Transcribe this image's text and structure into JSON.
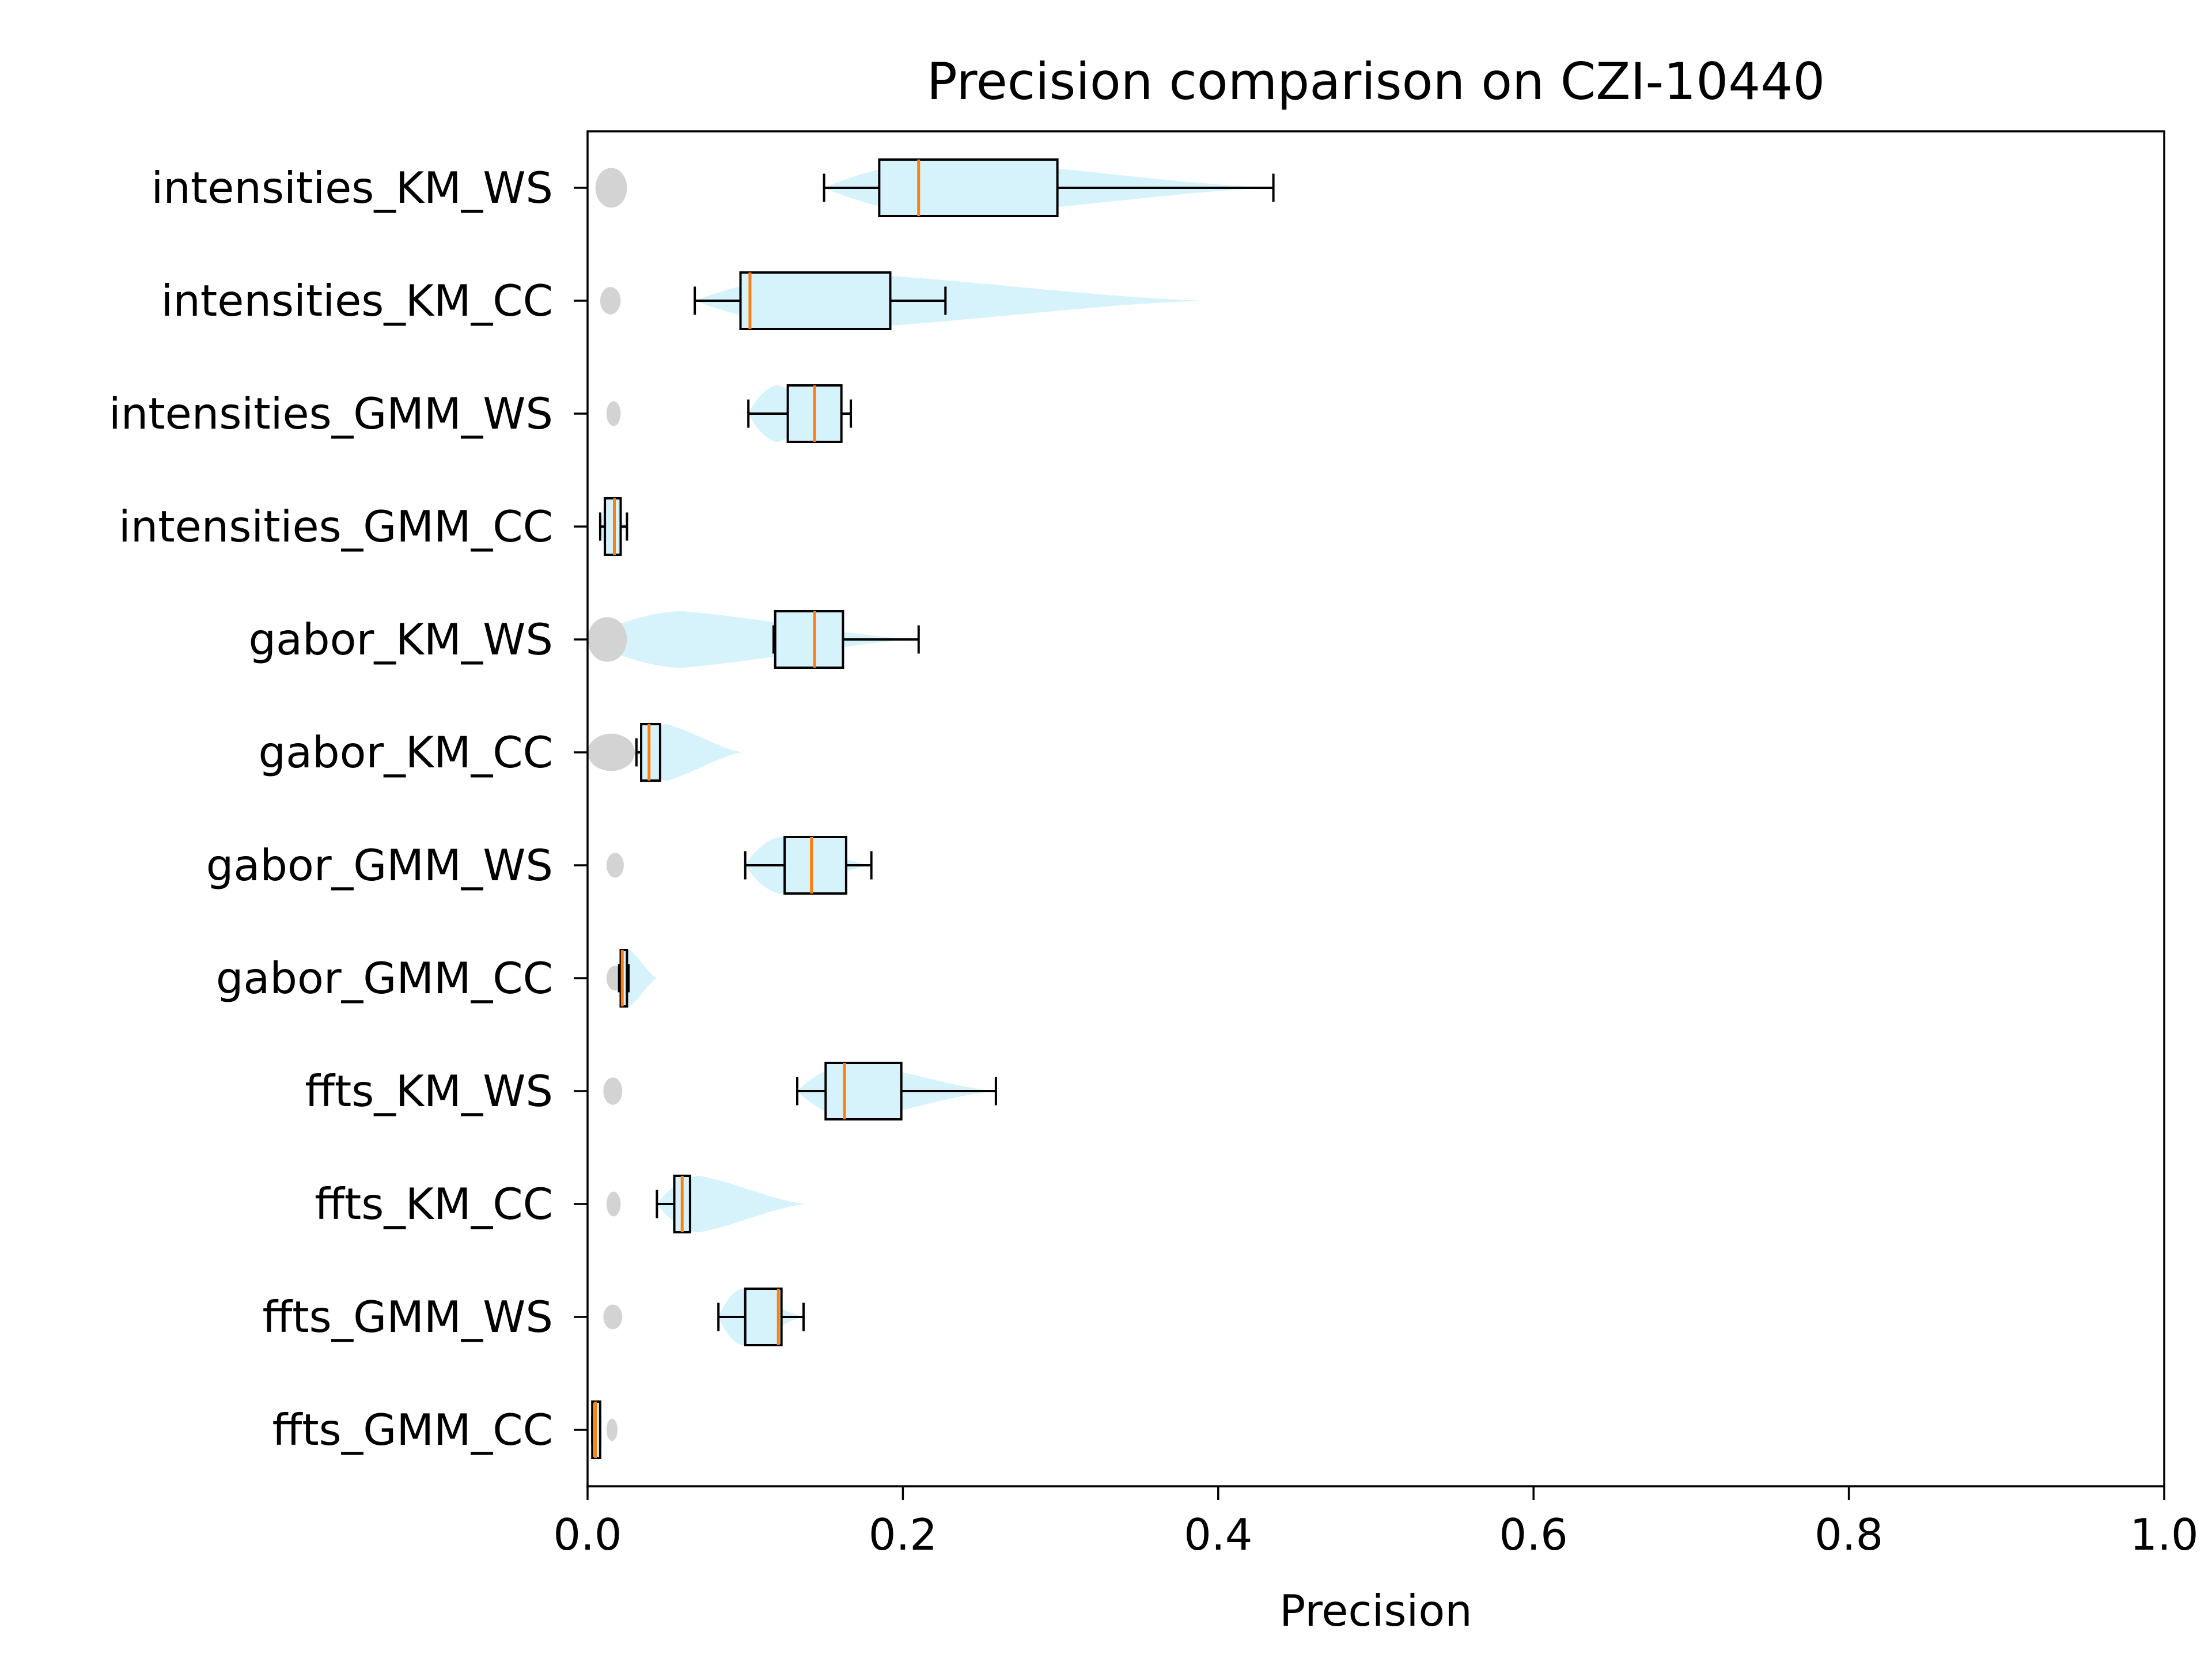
{
  "chart_data": {
    "type": "boxplot",
    "title": "Precision comparison on CZI-10440",
    "xlabel": "Precision",
    "ylabel": "",
    "xlim": [
      0,
      1
    ],
    "x_ticks": [
      "0.0",
      "0.2",
      "0.4",
      "0.6",
      "0.8",
      "1.0"
    ],
    "grid": false,
    "orientation": "horizontal",
    "colors": {
      "box_fill": "#d6f3fc",
      "violin_fill": "#d6f3fc",
      "background_violin": "#d3d3d3",
      "median": "#ff7f0e",
      "box_edge": "#000000"
    },
    "series": [
      {
        "label": "intensities_KM_WS",
        "whisker_low": 0.15,
        "q1": 0.185,
        "median": 0.21,
        "q3": 0.298,
        "whisker_high": 0.435,
        "violin_min": 0.15,
        "violin_max": 0.435
      },
      {
        "label": "intensities_KM_CC",
        "whisker_low": 0.068,
        "q1": 0.097,
        "median": 0.103,
        "q3": 0.192,
        "whisker_high": 0.227,
        "violin_min": 0.068,
        "violin_max": 0.39
      },
      {
        "label": "intensities_GMM_WS",
        "whisker_low": 0.102,
        "q1": 0.127,
        "median": 0.144,
        "q3": 0.161,
        "whisker_high": 0.167,
        "violin_min": 0.102,
        "violin_max": 0.167
      },
      {
        "label": "intensities_GMM_CC",
        "whisker_low": 0.008,
        "q1": 0.011,
        "median": 0.017,
        "q3": 0.021,
        "whisker_high": 0.025,
        "violin_min": 0.008,
        "violin_max": 0.025
      },
      {
        "label": "gabor_KM_WS",
        "whisker_low": 0.118,
        "q1": 0.119,
        "median": 0.144,
        "q3": 0.162,
        "whisker_high": 0.21,
        "violin_min": 0.0,
        "violin_max": 0.21
      },
      {
        "label": "gabor_KM_CC",
        "whisker_low": 0.031,
        "q1": 0.034,
        "median": 0.039,
        "q3": 0.046,
        "whisker_high": 0.046,
        "violin_min": 0.031,
        "violin_max": 0.098
      },
      {
        "label": "gabor_GMM_WS",
        "whisker_low": 0.1,
        "q1": 0.125,
        "median": 0.142,
        "q3": 0.164,
        "whisker_high": 0.18,
        "violin_min": 0.1,
        "violin_max": 0.18
      },
      {
        "label": "gabor_GMM_CC",
        "whisker_low": 0.02,
        "q1": 0.021,
        "median": 0.022,
        "q3": 0.025,
        "whisker_high": 0.026,
        "violin_min": 0.02,
        "violin_max": 0.044
      },
      {
        "label": "ffts_KM_WS",
        "whisker_low": 0.133,
        "q1": 0.151,
        "median": 0.163,
        "q3": 0.199,
        "whisker_high": 0.259,
        "violin_min": 0.133,
        "violin_max": 0.259
      },
      {
        "label": "ffts_KM_CC",
        "whisker_low": 0.044,
        "q1": 0.055,
        "median": 0.06,
        "q3": 0.065,
        "whisker_high": 0.065,
        "violin_min": 0.044,
        "violin_max": 0.138
      },
      {
        "label": "ffts_GMM_WS",
        "whisker_low": 0.083,
        "q1": 0.1,
        "median": 0.121,
        "q3": 0.123,
        "whisker_high": 0.137,
        "violin_min": 0.083,
        "violin_max": 0.137
      },
      {
        "label": "ffts_GMM_CC",
        "whisker_low": 0.003,
        "q1": 0.003,
        "median": 0.005,
        "q3": 0.008,
        "whisker_high": 0.008,
        "violin_min": 0.003,
        "violin_max": 0.008
      }
    ],
    "background_violins": [
      {
        "label": "intensities_KM_WS",
        "min": 0.005,
        "max": 0.025,
        "width": 0.8
      },
      {
        "label": "intensities_KM_CC",
        "min": 0.008,
        "max": 0.021,
        "width": 0.55
      },
      {
        "label": "intensities_GMM_WS",
        "min": 0.012,
        "max": 0.021,
        "width": 0.5
      },
      {
        "label": "intensities_GMM_CC",
        "min": 0.012,
        "max": 0.02,
        "width": 0.4
      },
      {
        "label": "gabor_KM_WS",
        "min": 0.0,
        "max": 0.025,
        "width": 0.9
      },
      {
        "label": "gabor_KM_CC",
        "min": 0.0,
        "max": 0.03,
        "width": 0.75
      },
      {
        "label": "gabor_GMM_WS",
        "min": 0.012,
        "max": 0.023,
        "width": 0.5
      },
      {
        "label": "gabor_GMM_CC",
        "min": 0.012,
        "max": 0.023,
        "width": 0.5
      },
      {
        "label": "ffts_KM_WS",
        "min": 0.01,
        "max": 0.022,
        "width": 0.55
      },
      {
        "label": "ffts_KM_CC",
        "min": 0.012,
        "max": 0.021,
        "width": 0.5
      },
      {
        "label": "ffts_GMM_WS",
        "min": 0.01,
        "max": 0.022,
        "width": 0.5
      },
      {
        "label": "ffts_GMM_CC",
        "min": 0.012,
        "max": 0.019,
        "width": 0.45
      }
    ]
  }
}
